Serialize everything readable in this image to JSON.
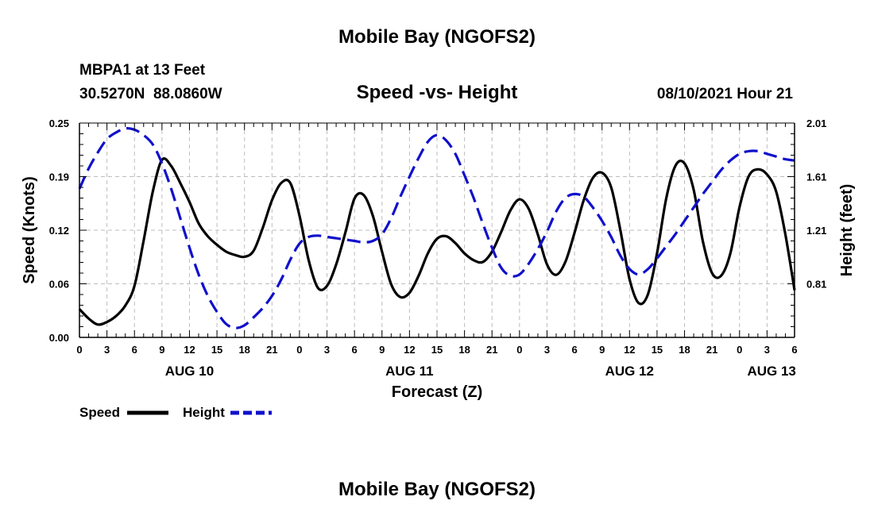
{
  "header": {
    "title": "Mobile Bay (NGOFS2)",
    "station_line": "MBPA1 at 13 Feet",
    "coords_line": "30.5270N  88.0860W",
    "date_line": "08/10/2021 Hour 21"
  },
  "footer": {
    "title": "Mobile Bay (NGOFS2)"
  },
  "legend": {
    "speed_label": "Speed",
    "height_label": "Height"
  },
  "colors": {
    "speed": "#000000",
    "height": "#1010cc"
  },
  "chart_data": {
    "type": "line",
    "title": "Speed -vs- Height",
    "xlabel": "Forecast (Z)",
    "ylabel": "Speed (Knots)",
    "ylabel_right": "Height (feet)",
    "x_unit": "hours from 08/10 00Z",
    "xlim": [
      0,
      78
    ],
    "ylim": [
      0,
      0.25
    ],
    "ylim_right": [
      0.41,
      2.01
    ],
    "y_ticks": [
      "0.00",
      "0.06",
      "0.12",
      "0.19",
      "0.25"
    ],
    "y_tick_values": [
      0,
      0.0625,
      0.125,
      0.1875,
      0.25
    ],
    "y_right_ticks": [
      "0.81",
      "1.21",
      "1.61",
      "2.01"
    ],
    "y_right_tick_values": [
      0.81,
      1.21,
      1.61,
      2.01
    ],
    "x_ticks": [
      {
        "x": 0,
        "label": "0"
      },
      {
        "x": 3,
        "label": "3"
      },
      {
        "x": 6,
        "label": "6"
      },
      {
        "x": 9,
        "label": "9"
      },
      {
        "x": 12,
        "label": "12"
      },
      {
        "x": 15,
        "label": "15"
      },
      {
        "x": 18,
        "label": "18"
      },
      {
        "x": 21,
        "label": "21"
      },
      {
        "x": 24,
        "label": "0"
      },
      {
        "x": 27,
        "label": "3"
      },
      {
        "x": 30,
        "label": "6"
      },
      {
        "x": 33,
        "label": "9"
      },
      {
        "x": 36,
        "label": "12"
      },
      {
        "x": 39,
        "label": "15"
      },
      {
        "x": 42,
        "label": "18"
      },
      {
        "x": 45,
        "label": "21"
      },
      {
        "x": 48,
        "label": "0"
      },
      {
        "x": 51,
        "label": "3"
      },
      {
        "x": 54,
        "label": "6"
      },
      {
        "x": 57,
        "label": "9"
      },
      {
        "x": 60,
        "label": "12"
      },
      {
        "x": 63,
        "label": "15"
      },
      {
        "x": 66,
        "label": "18"
      },
      {
        "x": 69,
        "label": "21"
      },
      {
        "x": 72,
        "label": "0"
      },
      {
        "x": 75,
        "label": "3"
      },
      {
        "x": 78,
        "label": "6"
      }
    ],
    "day_labels": [
      {
        "x": 12,
        "label": "AUG 10"
      },
      {
        "x": 36,
        "label": "AUG 11"
      },
      {
        "x": 60,
        "label": "AUG 12"
      },
      {
        "x": 75.5,
        "label": "AUG 13"
      }
    ],
    "series": [
      {
        "name": "Speed",
        "axis": "left",
        "style": "solid",
        "points": [
          [
            0,
            0.033
          ],
          [
            1,
            0.022
          ],
          [
            2,
            0.015
          ],
          [
            3,
            0.018
          ],
          [
            4,
            0.025
          ],
          [
            5,
            0.037
          ],
          [
            6,
            0.06
          ],
          [
            7,
            0.113
          ],
          [
            8,
            0.17
          ],
          [
            9,
            0.207
          ],
          [
            10,
            0.2
          ],
          [
            11,
            0.18
          ],
          [
            12,
            0.158
          ],
          [
            13,
            0.133
          ],
          [
            14,
            0.118
          ],
          [
            15,
            0.108
          ],
          [
            16,
            0.1
          ],
          [
            17,
            0.096
          ],
          [
            18,
            0.094
          ],
          [
            19,
            0.101
          ],
          [
            20,
            0.128
          ],
          [
            21,
            0.16
          ],
          [
            22,
            0.18
          ],
          [
            23,
            0.18
          ],
          [
            24,
            0.142
          ],
          [
            25,
            0.09
          ],
          [
            26,
            0.058
          ],
          [
            27,
            0.06
          ],
          [
            28,
            0.085
          ],
          [
            29,
            0.122
          ],
          [
            30,
            0.162
          ],
          [
            31,
            0.166
          ],
          [
            32,
            0.142
          ],
          [
            33,
            0.1
          ],
          [
            34,
            0.062
          ],
          [
            35,
            0.047
          ],
          [
            36,
            0.052
          ],
          [
            37,
            0.072
          ],
          [
            38,
            0.098
          ],
          [
            39,
            0.115
          ],
          [
            40,
            0.118
          ],
          [
            41,
            0.11
          ],
          [
            42,
            0.098
          ],
          [
            43,
            0.09
          ],
          [
            44,
            0.088
          ],
          [
            45,
            0.1
          ],
          [
            46,
            0.123
          ],
          [
            47,
            0.148
          ],
          [
            48,
            0.161
          ],
          [
            49,
            0.15
          ],
          [
            50,
            0.12
          ],
          [
            51,
            0.085
          ],
          [
            52,
            0.073
          ],
          [
            53,
            0.088
          ],
          [
            54,
            0.122
          ],
          [
            55,
            0.16
          ],
          [
            56,
            0.186
          ],
          [
            57,
            0.192
          ],
          [
            58,
            0.175
          ],
          [
            59,
            0.125
          ],
          [
            60,
            0.068
          ],
          [
            61,
            0.04
          ],
          [
            62,
            0.05
          ],
          [
            63,
            0.098
          ],
          [
            64,
            0.162
          ],
          [
            65,
            0.2
          ],
          [
            66,
            0.203
          ],
          [
            67,
            0.172
          ],
          [
            68,
            0.112
          ],
          [
            69,
            0.075
          ],
          [
            70,
            0.072
          ],
          [
            71,
            0.098
          ],
          [
            72,
            0.152
          ],
          [
            73,
            0.188
          ],
          [
            74,
            0.196
          ],
          [
            75,
            0.19
          ],
          [
            76,
            0.17
          ],
          [
            77,
            0.12
          ],
          [
            78,
            0.055
          ]
        ]
      },
      {
        "name": "Height",
        "axis": "right",
        "style": "dashed",
        "points": [
          [
            0,
            1.52
          ],
          [
            1,
            1.67
          ],
          [
            2,
            1.79
          ],
          [
            3,
            1.89
          ],
          [
            4,
            1.94
          ],
          [
            5,
            1.97
          ],
          [
            6,
            1.96
          ],
          [
            7,
            1.92
          ],
          [
            8,
            1.85
          ],
          [
            9,
            1.71
          ],
          [
            10,
            1.52
          ],
          [
            11,
            1.3
          ],
          [
            12,
            1.08
          ],
          [
            13,
            0.88
          ],
          [
            14,
            0.72
          ],
          [
            15,
            0.6
          ],
          [
            16,
            0.51
          ],
          [
            17,
            0.48
          ],
          [
            18,
            0.5
          ],
          [
            19,
            0.56
          ],
          [
            20,
            0.63
          ],
          [
            21,
            0.72
          ],
          [
            22,
            0.84
          ],
          [
            23,
            0.99
          ],
          [
            24,
            1.11
          ],
          [
            25,
            1.16
          ],
          [
            26,
            1.17
          ],
          [
            27,
            1.16
          ],
          [
            28,
            1.15
          ],
          [
            29,
            1.14
          ],
          [
            30,
            1.13
          ],
          [
            31,
            1.12
          ],
          [
            32,
            1.13
          ],
          [
            33,
            1.18
          ],
          [
            34,
            1.3
          ],
          [
            35,
            1.46
          ],
          [
            36,
            1.61
          ],
          [
            37,
            1.75
          ],
          [
            38,
            1.87
          ],
          [
            39,
            1.92
          ],
          [
            40,
            1.88
          ],
          [
            41,
            1.78
          ],
          [
            42,
            1.62
          ],
          [
            43,
            1.45
          ],
          [
            44,
            1.26
          ],
          [
            45,
            1.08
          ],
          [
            46,
            0.93
          ],
          [
            47,
            0.87
          ],
          [
            48,
            0.88
          ],
          [
            49,
            0.96
          ],
          [
            50,
            1.07
          ],
          [
            51,
            1.2
          ],
          [
            52,
            1.35
          ],
          [
            53,
            1.45
          ],
          [
            54,
            1.48
          ],
          [
            55,
            1.46
          ],
          [
            56,
            1.38
          ],
          [
            57,
            1.28
          ],
          [
            58,
            1.16
          ],
          [
            59,
            1.02
          ],
          [
            60,
            0.92
          ],
          [
            61,
            0.88
          ],
          [
            62,
            0.92
          ],
          [
            63,
            1.0
          ],
          [
            64,
            1.09
          ],
          [
            65,
            1.18
          ],
          [
            66,
            1.28
          ],
          [
            67,
            1.38
          ],
          [
            68,
            1.48
          ],
          [
            69,
            1.57
          ],
          [
            70,
            1.66
          ],
          [
            71,
            1.73
          ],
          [
            72,
            1.78
          ],
          [
            73,
            1.8
          ],
          [
            74,
            1.8
          ],
          [
            75,
            1.78
          ],
          [
            76,
            1.76
          ],
          [
            77,
            1.74
          ],
          [
            78,
            1.73
          ]
        ]
      }
    ]
  }
}
